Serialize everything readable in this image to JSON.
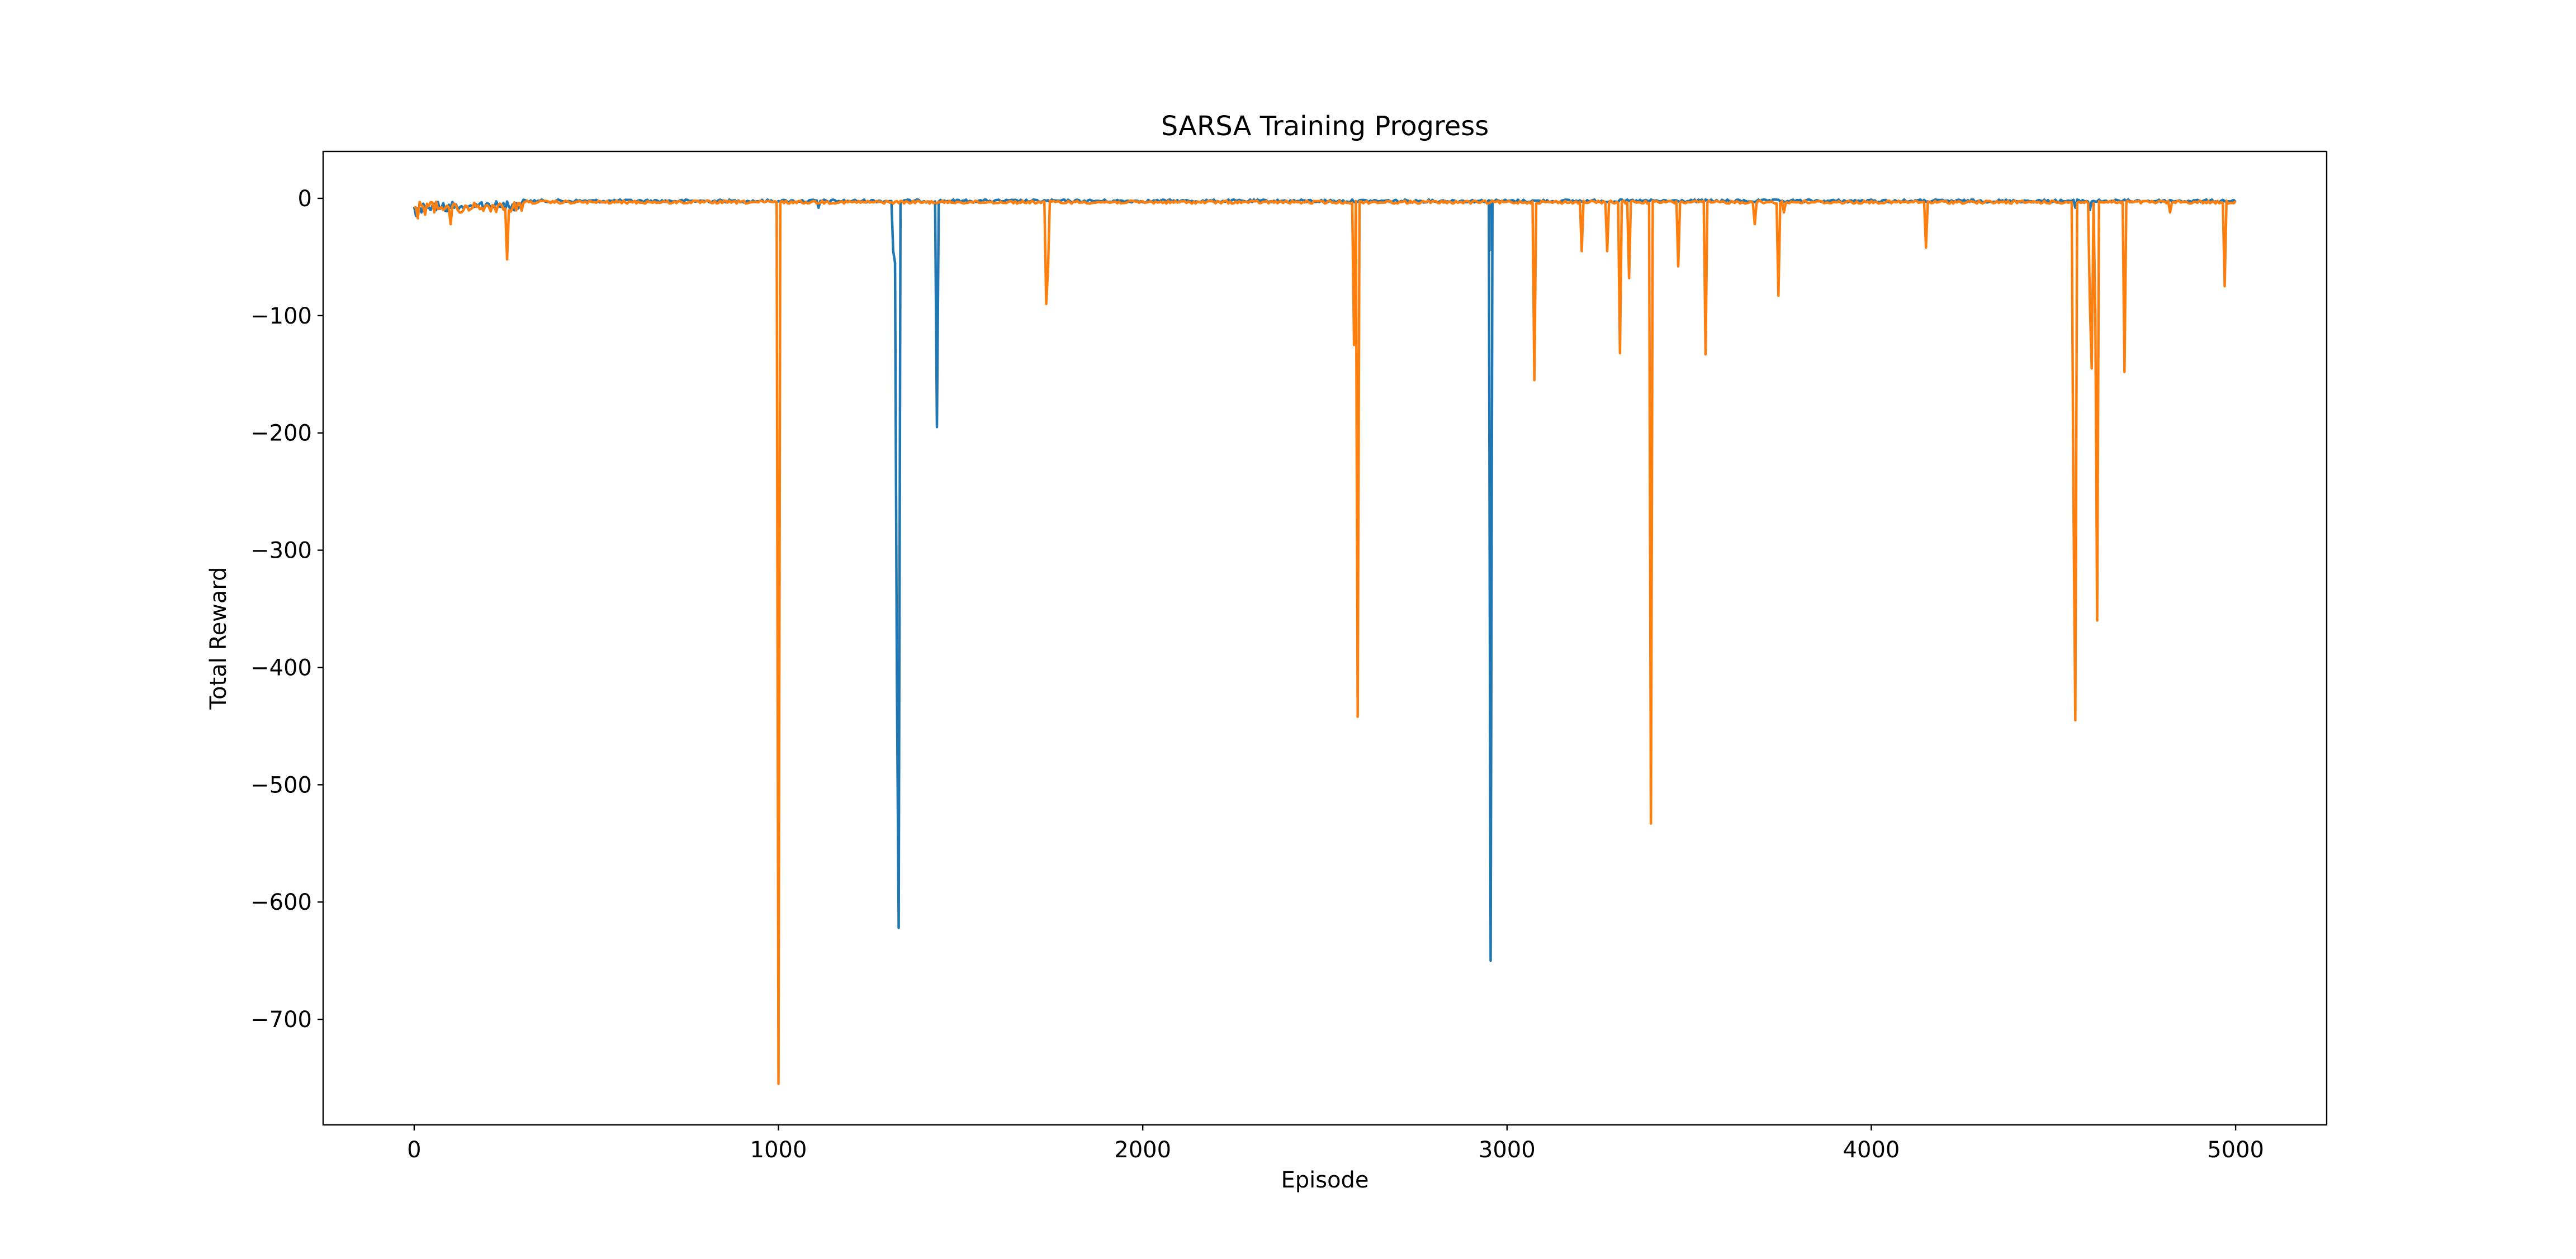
{
  "chart_data": {
    "type": "line",
    "title": "SARSA Training Progress",
    "xlabel": "Episode",
    "ylabel": "Total Reward",
    "xlim": [
      -250,
      5250
    ],
    "ylim": [
      -790,
      40
    ],
    "x_ticks": [
      0,
      1000,
      2000,
      3000,
      4000,
      5000
    ],
    "x_tick_labels": [
      "0",
      "1000",
      "2000",
      "3000",
      "4000",
      "5000"
    ],
    "y_ticks": [
      0,
      -100,
      -200,
      -300,
      -400,
      -500,
      -600,
      -700
    ],
    "y_tick_labels": [
      "0",
      "−100",
      "−200",
      "−300",
      "−400",
      "−500",
      "−600",
      "−700"
    ],
    "grid": false,
    "legend": "none",
    "x_range": [
      0,
      5000
    ],
    "baseline_note_free": true,
    "series": [
      {
        "color": "#1f77b4",
        "baseline": -1,
        "spikes": [
          {
            "x": 5,
            "y": -15
          },
          {
            "x": 20,
            "y": -12
          },
          {
            "x": 45,
            "y": -10
          },
          {
            "x": 70,
            "y": -9
          },
          {
            "x": 90,
            "y": -11
          },
          {
            "x": 110,
            "y": -8
          },
          {
            "x": 140,
            "y": -7
          },
          {
            "x": 190,
            "y": -10
          },
          {
            "x": 1110,
            "y": -8
          },
          {
            "x": 1315,
            "y": -45
          },
          {
            "x": 1320,
            "y": -55
          },
          {
            "x": 1325,
            "y": -405
          },
          {
            "x": 1330,
            "y": -622
          },
          {
            "x": 1435,
            "y": -195
          },
          {
            "x": 2955,
            "y": -650
          },
          {
            "x": 2958,
            "y": -45
          },
          {
            "x": 4560,
            "y": -8
          },
          {
            "x": 4600,
            "y": -10
          }
        ]
      },
      {
        "color": "#ff7f0e",
        "baseline": -2,
        "spikes": [
          {
            "x": 10,
            "y": -17
          },
          {
            "x": 30,
            "y": -14
          },
          {
            "x": 55,
            "y": -12
          },
          {
            "x": 80,
            "y": -10
          },
          {
            "x": 100,
            "y": -22
          },
          {
            "x": 130,
            "y": -12
          },
          {
            "x": 160,
            "y": -8
          },
          {
            "x": 255,
            "y": -52
          },
          {
            "x": 1000,
            "y": -755
          },
          {
            "x": 1735,
            "y": -90
          },
          {
            "x": 1740,
            "y": -60
          },
          {
            "x": 2580,
            "y": -125
          },
          {
            "x": 2590,
            "y": -442
          },
          {
            "x": 3075,
            "y": -155
          },
          {
            "x": 3205,
            "y": -45
          },
          {
            "x": 3275,
            "y": -45
          },
          {
            "x": 3310,
            "y": -132
          },
          {
            "x": 3335,
            "y": -68
          },
          {
            "x": 3395,
            "y": -533
          },
          {
            "x": 3470,
            "y": -58
          },
          {
            "x": 3545,
            "y": -133
          },
          {
            "x": 3680,
            "y": -22
          },
          {
            "x": 3745,
            "y": -83
          },
          {
            "x": 3760,
            "y": -12
          },
          {
            "x": 4150,
            "y": -42
          },
          {
            "x": 4555,
            "y": -260
          },
          {
            "x": 4560,
            "y": -445
          },
          {
            "x": 4600,
            "y": -90
          },
          {
            "x": 4605,
            "y": -145
          },
          {
            "x": 4615,
            "y": -100
          },
          {
            "x": 4620,
            "y": -360
          },
          {
            "x": 4695,
            "y": -148
          },
          {
            "x": 4820,
            "y": -12
          },
          {
            "x": 4970,
            "y": -75
          }
        ]
      }
    ]
  }
}
